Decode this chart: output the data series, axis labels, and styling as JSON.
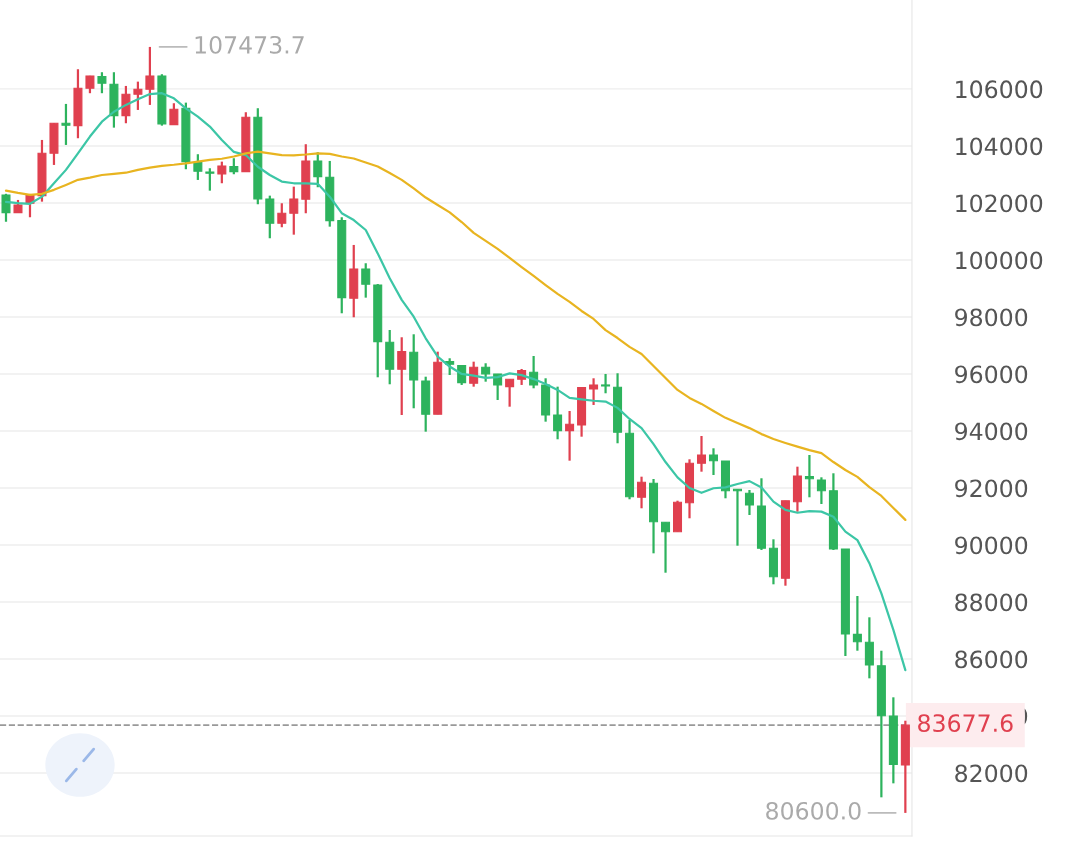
{
  "chart_data": {
    "type": "candlestick",
    "categories": [
      null,
      null,
      null,
      null,
      null,
      null,
      null,
      null,
      null,
      null,
      null,
      null,
      null,
      null,
      null,
      null,
      null,
      null,
      null,
      null,
      null,
      null,
      null,
      null,
      null,
      null,
      null,
      null,
      null,
      null,
      null,
      null,
      null,
      null,
      null,
      null,
      null,
      null,
      null,
      null,
      null,
      null,
      null,
      null,
      null,
      null,
      null,
      null,
      null,
      null,
      null,
      null,
      null,
      null,
      null,
      null,
      null,
      null,
      null,
      null,
      null,
      null,
      null,
      null,
      null,
      null,
      null,
      null,
      null,
      null,
      null,
      null,
      null,
      null,
      null,
      null
    ],
    "ohlc": [
      [
        102280,
        102320,
        101340,
        101660
      ],
      [
        101660,
        102105,
        101650,
        101930
      ],
      [
        101990,
        102316,
        101498,
        102256
      ],
      [
        102256,
        104210,
        102045,
        103744
      ],
      [
        103744,
        104800,
        103333,
        104796
      ],
      [
        104796,
        105474,
        104035,
        104726
      ],
      [
        104712,
        106691,
        104270,
        106025
      ],
      [
        106025,
        106460,
        105850,
        106456
      ],
      [
        106432,
        106586,
        105850,
        106200
      ],
      [
        106165,
        106586,
        104642,
        105063
      ],
      [
        105063,
        106105,
        104796,
        105814
      ],
      [
        105814,
        106256,
        105263,
        105989
      ],
      [
        105989,
        107473.7,
        105439,
        106456
      ],
      [
        106456,
        106516,
        104712,
        104772
      ],
      [
        104747,
        105498,
        104747,
        105288
      ],
      [
        105323,
        105519,
        103182,
        103449
      ],
      [
        103414,
        103709,
        102807,
        103112
      ],
      [
        103087,
        103217,
        102431,
        103042
      ],
      [
        103017,
        103449,
        102691,
        103298
      ],
      [
        103274,
        103568,
        103007,
        103098
      ],
      [
        103098,
        105182,
        103098,
        105007
      ],
      [
        105007,
        105323,
        101954,
        102140
      ],
      [
        102140,
        102256,
        100761,
        101287
      ],
      [
        101287,
        101989,
        101147,
        101638
      ],
      [
        101638,
        102572,
        100887,
        102140
      ],
      [
        102130,
        104060,
        101638,
        103473
      ],
      [
        103473,
        103779,
        102551,
        102923
      ],
      [
        102902,
        103473,
        101168,
        101379
      ],
      [
        101379,
        101498,
        98129,
        98677
      ],
      [
        98656,
        100526,
        97989,
        99684
      ],
      [
        99684,
        99884,
        98677,
        99147
      ],
      [
        99122,
        99157,
        95883,
        97133
      ],
      [
        97112,
        97543,
        95638,
        96164
      ],
      [
        96164,
        97287,
        94560,
        96782
      ],
      [
        96761,
        97392,
        94796,
        95789
      ],
      [
        95754,
        95904,
        93975,
        94585
      ],
      [
        94585,
        96782,
        94585,
        96410
      ],
      [
        96431,
        96550,
        95964,
        96340
      ],
      [
        96291,
        96300,
        95614,
        95694
      ],
      [
        95673,
        96431,
        95554,
        96234
      ],
      [
        96234,
        96375,
        95729,
        96000
      ],
      [
        96000,
        96000,
        95087,
        95614
      ],
      [
        95554,
        95813,
        94852,
        95813
      ],
      [
        95813,
        96175,
        95614,
        96115
      ],
      [
        96059,
        96631,
        95497,
        95614
      ],
      [
        95614,
        95848,
        94326,
        94560
      ],
      [
        94560,
        95554,
        93708,
        94010
      ],
      [
        94010,
        94701,
        92957,
        94234
      ],
      [
        94210,
        95519,
        93799,
        95519
      ],
      [
        95473,
        95848,
        94912,
        95614
      ],
      [
        95614,
        96000,
        95322,
        95579
      ],
      [
        95533,
        96024,
        93568,
        93954
      ],
      [
        93918,
        94385,
        91603,
        91694
      ],
      [
        91673,
        92396,
        91287,
        92199
      ],
      [
        92164,
        92315,
        89707,
        90817
      ],
      [
        90796,
        90796,
        89027,
        90466
      ],
      [
        90466,
        91553,
        90466,
        91497
      ],
      [
        91483,
        93006,
        90936,
        92866
      ],
      [
        92866,
        93824,
        92571,
        93157
      ],
      [
        93157,
        93392,
        92455,
        92957
      ],
      [
        92946,
        92946,
        91638,
        91904
      ],
      [
        91954,
        91954,
        89975,
        91904
      ],
      [
        91813,
        91929,
        91052,
        91403
      ],
      [
        91367,
        92340,
        89823,
        89883
      ],
      [
        89883,
        90199,
        88620,
        88886
      ],
      [
        88830,
        91553,
        88571,
        91553
      ],
      [
        91518,
        92747,
        91167,
        92420
      ],
      [
        92396,
        93157,
        91673,
        92325
      ],
      [
        92280,
        92374,
        91438,
        91904
      ],
      [
        91904,
        92515,
        89823,
        89859
      ],
      [
        89859,
        89859,
        86104,
        86876
      ],
      [
        86865,
        88209,
        86290,
        86606
      ],
      [
        86585,
        87462,
        85321,
        85788
      ],
      [
        85764,
        86290,
        81146,
        84009
      ],
      [
        83998,
        84655,
        81637,
        82304
      ],
      [
        82279,
        83834,
        80600.0,
        83677.6
      ]
    ],
    "colors": [
      "#2db35d",
      "#e0404f",
      "#e0404f",
      "#e0404f",
      "#e0404f",
      "#2db35d",
      "#e0404f",
      "#e0404f",
      "#2db35d",
      "#2db35d",
      "#e0404f",
      "#e0404f",
      "#e0404f",
      "#2db35d",
      "#e0404f",
      "#2db35d",
      "#2db35d",
      "#2db35d",
      "#e0404f",
      "#2db35d",
      "#e0404f",
      "#2db35d",
      "#2db35d",
      "#e0404f",
      "#e0404f",
      "#e0404f",
      "#2db35d",
      "#2db35d",
      "#2db35d",
      "#e0404f",
      "#2db35d",
      "#2db35d",
      "#2db35d",
      "#e0404f",
      "#2db35d",
      "#2db35d",
      "#e0404f",
      "#2db35d",
      "#2db35d",
      "#e0404f",
      "#2db35d",
      "#2db35d",
      "#e0404f",
      "#e0404f",
      "#2db35d",
      "#2db35d",
      "#2db35d",
      "#e0404f",
      "#e0404f",
      "#e0404f",
      "#2db35d",
      "#2db35d",
      "#2db35d",
      "#e0404f",
      "#2db35d",
      "#2db35d",
      "#e0404f",
      "#e0404f",
      "#e0404f",
      "#2db35d",
      "#2db35d",
      "#2db35d",
      "#2db35d",
      "#2db35d",
      "#2db35d",
      "#e0404f",
      "#e0404f",
      "#2db35d",
      "#2db35d",
      "#2db35d",
      "#2db35d",
      "#2db35d",
      "#2db35d",
      "#2db35d",
      "#2db35d",
      "#e0404f"
    ],
    "series": [
      {
        "type": "line",
        "color": "#3cc6a6",
        "values": [
          102040,
          101990,
          101970,
          102220,
          102690,
          103160,
          103740,
          104330,
          104850,
          105200,
          105440,
          105640,
          105820,
          105850,
          105670,
          105320,
          105030,
          104680,
          104210,
          103790,
          103680,
          103270,
          102980,
          102750,
          102690,
          102690,
          102670,
          102220,
          101640,
          101400,
          101050,
          100230,
          99360,
          98600,
          98010,
          97250,
          96610,
          96260,
          96000,
          95940,
          95860,
          95890,
          96020,
          95960,
          95820,
          95650,
          95440,
          95160,
          95110,
          95060,
          95030,
          94810,
          94420,
          94100,
          93540,
          92910,
          92370,
          92000,
          91830,
          91990,
          92020,
          92140,
          92240,
          92020,
          91520,
          91230,
          91130,
          91190,
          91170,
          90990,
          90470,
          90170,
          89360,
          88300,
          87020,
          85610
        ]
      },
      {
        "type": "line",
        "color": "#e8b420",
        "values": [
          102430,
          102350,
          102280,
          102320,
          102460,
          102630,
          102810,
          102890,
          102980,
          103020,
          103060,
          103160,
          103240,
          103300,
          103340,
          103390,
          103450,
          103510,
          103550,
          103630,
          103740,
          103800,
          103740,
          103680,
          103670,
          103700,
          103740,
          103720,
          103630,
          103560,
          103420,
          103280,
          103050,
          102810,
          102510,
          102190,
          101930,
          101670,
          101330,
          100950,
          100670,
          100390,
          100070,
          99750,
          99440,
          99120,
          98810,
          98530,
          98210,
          97930,
          97540,
          97260,
          96950,
          96700,
          96280,
          95860,
          95440,
          95160,
          94950,
          94700,
          94460,
          94280,
          94100,
          93890,
          93720,
          93580,
          93450,
          93330,
          93220,
          92910,
          92630,
          92390,
          92030,
          91720,
          91300,
          90880
        ]
      }
    ],
    "ylim": [
      79790,
      109120
    ],
    "yticks": [
      82000,
      84000,
      86000,
      88000,
      90000,
      92000,
      94000,
      96000,
      98000,
      100000,
      102000,
      104000,
      106000
    ],
    "grid": "y",
    "tick_labels": "y",
    "ref_lines": [
      {
        "axis": "y",
        "value": 83677.6,
        "label": "83677.6",
        "color": "#999999",
        "line_style": "dashed"
      }
    ],
    "annotations": [
      "107473.7",
      "80600.0"
    ]
  }
}
